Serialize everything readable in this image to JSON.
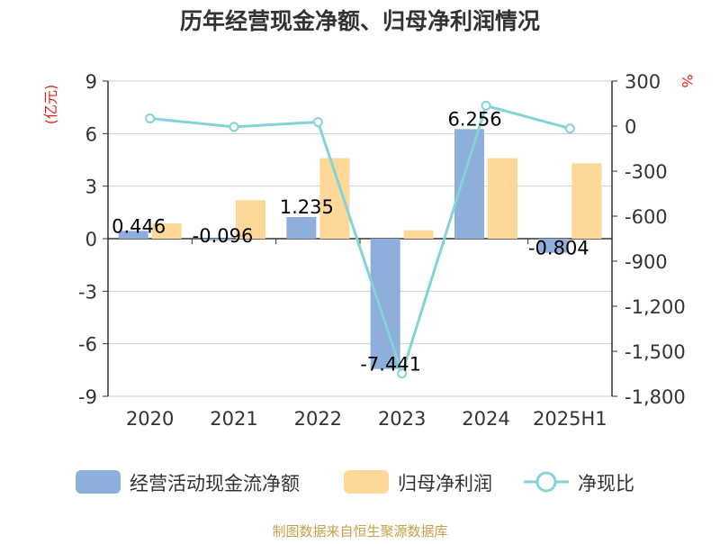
{
  "chart_data": {
    "type": "bar",
    "title": "历年经营现金净额、归母净利润情况",
    "categories": [
      "2020",
      "2021",
      "2022",
      "2023",
      "2024",
      "2025H1"
    ],
    "left_axis": {
      "unit_label": "(亿元)",
      "range": [
        -9,
        9
      ],
      "ticks": [
        "9",
        "6",
        "3",
        "0",
        "-3",
        "-6",
        "-9"
      ],
      "tick_values": [
        9,
        6,
        3,
        0,
        -3,
        -6,
        -9
      ]
    },
    "right_axis": {
      "unit_label": "%",
      "range": [
        -1800,
        300
      ],
      "ticks": [
        "300",
        "0",
        "-300",
        "-600",
        "-900",
        "-1,200",
        "-1,500",
        "-1,800"
      ],
      "tick_values": [
        300,
        0,
        -300,
        -600,
        -900,
        -1200,
        -1500,
        -1800
      ]
    },
    "series": [
      {
        "name": "经营活动现金流净额",
        "kind": "bar",
        "axis": "left",
        "values": [
          0.446,
          -0.096,
          1.235,
          -7.441,
          6.256,
          -0.804
        ],
        "labels": [
          "0.446",
          "-0.096",
          "1.235",
          "-7.441",
          "6.256",
          "-0.804"
        ]
      },
      {
        "name": "归母净利润",
        "kind": "bar",
        "axis": "left",
        "values": [
          0.87,
          2.2,
          4.6,
          0.48,
          4.6,
          4.3
        ]
      },
      {
        "name": "净现比",
        "kind": "line",
        "axis": "right",
        "values": [
          51,
          -5,
          27,
          -1648,
          136,
          -16
        ]
      }
    ],
    "grid": true,
    "legend_position": "bottom"
  },
  "colors": {
    "cash_flow": "#8eaedb",
    "net_profit": "#fdd899",
    "ratio_line": "#84d3d6",
    "axis_label": "#e2231a",
    "source": "#c5a04a"
  },
  "source_note": "制图数据来自恒生聚源数据库"
}
